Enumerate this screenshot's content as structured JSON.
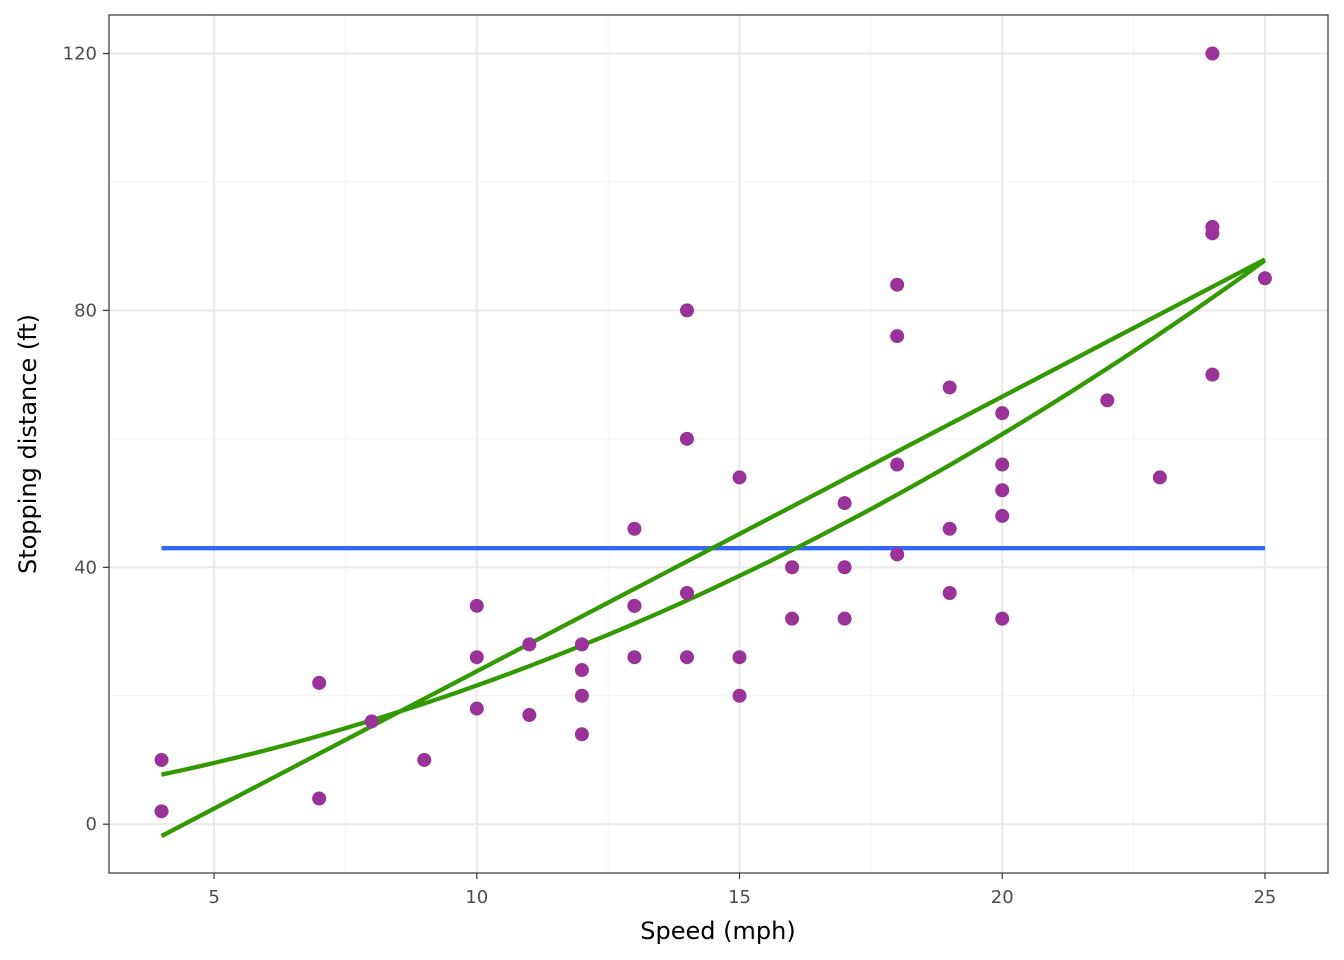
{
  "chart_data": {
    "type": "scatter",
    "xlabel": "Speed (mph)",
    "ylabel": "Stopping distance (ft)",
    "xlim": [
      3,
      26.2
    ],
    "ylim": [
      -7.6,
      126
    ],
    "x_ticks": [
      5,
      10,
      15,
      20,
      25
    ],
    "y_ticks": [
      0,
      40,
      80,
      120
    ],
    "x_tick_labels": [
      "5",
      "10",
      "15",
      "20",
      "25"
    ],
    "y_tick_labels": [
      "0",
      "40",
      "80",
      "120"
    ],
    "grid": true,
    "colors": {
      "points": "#993399",
      "mean_line": "#3366ff",
      "fit_lines": "#339900",
      "grid_major": "#ebebeb",
      "grid_minor": "#f4f4f4",
      "panel_border": "#333333"
    },
    "points": [
      {
        "x": 4,
        "y": 2
      },
      {
        "x": 4,
        "y": 10
      },
      {
        "x": 7,
        "y": 4
      },
      {
        "x": 7,
        "y": 22
      },
      {
        "x": 8,
        "y": 16
      },
      {
        "x": 9,
        "y": 10
      },
      {
        "x": 10,
        "y": 18
      },
      {
        "x": 10,
        "y": 26
      },
      {
        "x": 10,
        "y": 34
      },
      {
        "x": 11,
        "y": 17
      },
      {
        "x": 11,
        "y": 28
      },
      {
        "x": 12,
        "y": 14
      },
      {
        "x": 12,
        "y": 20
      },
      {
        "x": 12,
        "y": 24
      },
      {
        "x": 12,
        "y": 28
      },
      {
        "x": 13,
        "y": 26
      },
      {
        "x": 13,
        "y": 34
      },
      {
        "x": 13,
        "y": 34
      },
      {
        "x": 13,
        "y": 46
      },
      {
        "x": 14,
        "y": 26
      },
      {
        "x": 14,
        "y": 36
      },
      {
        "x": 14,
        "y": 60
      },
      {
        "x": 14,
        "y": 80
      },
      {
        "x": 15,
        "y": 20
      },
      {
        "x": 15,
        "y": 26
      },
      {
        "x": 15,
        "y": 54
      },
      {
        "x": 16,
        "y": 32
      },
      {
        "x": 16,
        "y": 40
      },
      {
        "x": 17,
        "y": 32
      },
      {
        "x": 17,
        "y": 40
      },
      {
        "x": 17,
        "y": 50
      },
      {
        "x": 18,
        "y": 42
      },
      {
        "x": 18,
        "y": 56
      },
      {
        "x": 18,
        "y": 76
      },
      {
        "x": 18,
        "y": 84
      },
      {
        "x": 19,
        "y": 36
      },
      {
        "x": 19,
        "y": 46
      },
      {
        "x": 19,
        "y": 68
      },
      {
        "x": 20,
        "y": 32
      },
      {
        "x": 20,
        "y": 48
      },
      {
        "x": 20,
        "y": 52
      },
      {
        "x": 20,
        "y": 56
      },
      {
        "x": 20,
        "y": 64
      },
      {
        "x": 22,
        "y": 66
      },
      {
        "x": 23,
        "y": 54
      },
      {
        "x": 24,
        "y": 70
      },
      {
        "x": 24,
        "y": 92
      },
      {
        "x": 24,
        "y": 93
      },
      {
        "x": 24,
        "y": 120
      },
      {
        "x": 25,
        "y": 85
      }
    ],
    "lines": [
      {
        "kind": "mean",
        "color": "#3366ff",
        "x": [
          4,
          25
        ],
        "y": [
          42.98,
          42.98
        ]
      },
      {
        "kind": "linear",
        "color": "#339900",
        "x": [
          4,
          25
        ],
        "y": [
          -1.85,
          87.95
        ]
      },
      {
        "kind": "quadratic",
        "color": "#339900",
        "x": [
          4,
          25
        ],
        "curve": {
          "intercept": 2.47,
          "b1": 0.913,
          "b2": 0.1
        }
      }
    ]
  }
}
